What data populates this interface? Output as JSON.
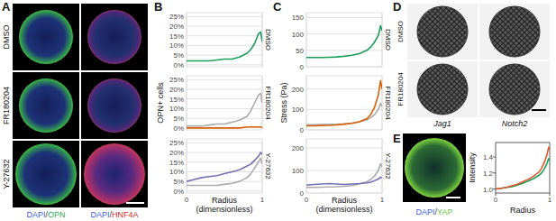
{
  "figure": {
    "A": {
      "letter": "A",
      "rows": [
        "DMSO",
        "FR180204",
        "Y-27632"
      ],
      "legends": [
        [
          {
            "text": "DAPI",
            "color": "#3b5bdb"
          },
          {
            "text": "/",
            "color": "#333333"
          },
          {
            "text": "OPN",
            "color": "#2fa84f"
          }
        ],
        [
          {
            "text": "DAPI",
            "color": "#3b5bdb"
          },
          {
            "text": "/",
            "color": "#333333"
          },
          {
            "text": "HNF4A",
            "color": "#d62828"
          }
        ]
      ]
    },
    "B": {
      "letter": "B"
    },
    "C": {
      "letter": "C"
    },
    "D": {
      "letter": "D",
      "rows": [
        "DMSO",
        "FR180204"
      ],
      "columns": [
        "Jag1",
        "Notch2"
      ]
    },
    "E": {
      "letter": "E",
      "legend": [
        {
          "text": "DAPI",
          "color": "#3b5bdb"
        },
        {
          "text": "/",
          "color": "#333333"
        },
        {
          "text": "YAP",
          "color": "#6cbf3a"
        }
      ]
    }
  },
  "chart_data": [
    {
      "type": "line",
      "title": "DMSO",
      "x": [
        0,
        0.1,
        0.2,
        0.3,
        0.4,
        0.5,
        0.6,
        0.7,
        0.8,
        0.85,
        0.9,
        0.95,
        0.98,
        1
      ],
      "series": [
        {
          "color": "#1b9e5a",
          "values": [
            2,
            2,
            2,
            2,
            2.5,
            3,
            3,
            4,
            6,
            8,
            11,
            16,
            17,
            12
          ]
        }
      ],
      "xlim": [
        0,
        1
      ],
      "xticks": [
        0,
        1
      ],
      "ylim": [
        -1,
        27
      ],
      "yticks": [
        {
          "value": 0,
          "label": "0%"
        },
        {
          "value": 5,
          "label": "5%"
        },
        {
          "value": 10,
          "label": "10%"
        },
        {
          "value": 15,
          "label": "15%"
        },
        {
          "value": 20,
          "label": "20%"
        },
        {
          "value": 25,
          "label": "25%"
        }
      ],
      "grid": true,
      "tick_labels": "y"
    },
    {
      "type": "line",
      "title": "FR180204",
      "y_label": "OPN+ cells",
      "x": [
        0,
        0.1,
        0.2,
        0.3,
        0.4,
        0.5,
        0.6,
        0.7,
        0.8,
        0.85,
        0.9,
        0.95,
        0.98,
        1
      ],
      "series": [
        {
          "color": "#aaaaaa",
          "values": [
            1,
            1,
            1,
            1.5,
            2,
            2,
            3,
            4,
            6,
            9,
            13,
            17,
            18,
            13
          ]
        },
        {
          "color": "#d95f02",
          "values": [
            0,
            0,
            0,
            0,
            0,
            0,
            0,
            0,
            0.5,
            0.5,
            0.5,
            0.5,
            0.5,
            0.3
          ]
        }
      ],
      "xlim": [
        0,
        1
      ],
      "xticks": [
        0,
        1
      ],
      "ylim": [
        -1,
        27
      ],
      "yticks": [
        {
          "value": 0,
          "label": "0%"
        },
        {
          "value": 5,
          "label": "5%"
        },
        {
          "value": 10,
          "label": "10%"
        },
        {
          "value": 15,
          "label": "15%"
        },
        {
          "value": 20,
          "label": "20%"
        },
        {
          "value": 25,
          "label": "25%"
        }
      ],
      "grid": true,
      "tick_labels": "y"
    },
    {
      "type": "line",
      "title": "Y-27632",
      "x_label": [
        "Radius",
        "(dimensionless)"
      ],
      "x": [
        0,
        0.1,
        0.2,
        0.3,
        0.4,
        0.5,
        0.6,
        0.7,
        0.8,
        0.85,
        0.9,
        0.95,
        0.98,
        1
      ],
      "series": [
        {
          "color": "#aaaaaa",
          "values": [
            3,
            3,
            3,
            3,
            3,
            3.5,
            4,
            5,
            7,
            9,
            12,
            15,
            17,
            14
          ]
        },
        {
          "color": "#7570b3",
          "values": [
            5,
            6,
            7,
            7.5,
            8,
            9,
            10,
            11,
            13,
            14,
            16,
            18,
            20,
            19
          ]
        }
      ],
      "xlim": [
        0,
        1
      ],
      "xticks": [
        0,
        1
      ],
      "ylim": [
        -1,
        27
      ],
      "yticks": [
        {
          "value": 0,
          "label": "0%"
        },
        {
          "value": 5,
          "label": "5%"
        },
        {
          "value": 10,
          "label": "10%"
        },
        {
          "value": 15,
          "label": "15%"
        },
        {
          "value": 20,
          "label": "20%"
        },
        {
          "value": 25,
          "label": "25%"
        }
      ],
      "grid": true
    },
    {
      "type": "line",
      "title": "DMSO",
      "x": [
        0,
        0.1,
        0.2,
        0.3,
        0.4,
        0.5,
        0.6,
        0.7,
        0.8,
        0.85,
        0.9,
        0.95,
        0.98,
        1
      ],
      "series": [
        {
          "color": "#1b9e5a",
          "values": [
            28,
            28,
            28,
            29,
            30,
            32,
            35,
            40,
            50,
            60,
            75,
            95,
            125,
            110
          ]
        }
      ],
      "xlim": [
        0,
        1
      ],
      "xticks": [
        0,
        1
      ],
      "ylim": [
        0,
        165
      ],
      "yticks": [
        0,
        50,
        100,
        150
      ],
      "grid": true,
      "tick_labels": "y"
    },
    {
      "type": "line",
      "title": "FR180204",
      "y_label": "Stress (Pa)",
      "x": [
        0,
        0.1,
        0.2,
        0.3,
        0.4,
        0.5,
        0.6,
        0.7,
        0.8,
        0.85,
        0.9,
        0.95,
        0.98,
        1
      ],
      "series": [
        {
          "color": "#aaaaaa",
          "values": [
            25,
            25,
            26,
            27,
            28,
            30,
            33,
            40,
            50,
            60,
            75,
            100,
            130,
            115
          ]
        },
        {
          "color": "#d95f02",
          "values": [
            20,
            20,
            21,
            22,
            24,
            28,
            32,
            40,
            55,
            75,
            110,
            170,
            240,
            200
          ]
        }
      ],
      "xlim": [
        0,
        1
      ],
      "xticks": [
        0,
        1
      ],
      "ylim": [
        0,
        265
      ],
      "yticks": [
        0,
        100,
        200
      ],
      "grid": true,
      "tick_labels": "y"
    },
    {
      "type": "line",
      "title": "Y-27632",
      "x_label": [
        "Radius",
        "(dimensionless)"
      ],
      "x": [
        0,
        0.1,
        0.2,
        0.3,
        0.4,
        0.5,
        0.6,
        0.7,
        0.8,
        0.85,
        0.9,
        0.95,
        0.98,
        1
      ],
      "series": [
        {
          "color": "#aaaaaa",
          "values": [
            25,
            25,
            26,
            27,
            28,
            30,
            33,
            40,
            50,
            60,
            75,
            100,
            130,
            115
          ]
        },
        {
          "color": "#7570b3",
          "values": [
            35,
            38,
            40,
            42,
            40,
            38,
            40,
            42,
            45,
            48,
            55,
            62,
            70,
            68
          ]
        }
      ],
      "xlim": [
        0,
        1
      ],
      "xticks": [
        0,
        1
      ],
      "ylim": [
        0,
        240
      ],
      "yticks": [
        0,
        100,
        200
      ],
      "grid": true
    },
    {
      "type": "line",
      "x_label": "Radius",
      "y_label": "Intensity",
      "x": [
        0,
        0.1,
        0.2,
        0.3,
        0.4,
        0.5,
        0.6,
        0.7,
        0.8,
        0.85,
        0.9,
        0.95,
        0.98,
        1
      ],
      "series": [
        {
          "color": "#1b9e5a",
          "values": [
            1.0,
            1.01,
            1.02,
            1.03,
            1.05,
            1.07,
            1.1,
            1.13,
            1.17,
            1.2,
            1.25,
            1.32,
            1.38,
            1.36
          ]
        },
        {
          "color": "#e8542a",
          "values": [
            1.0,
            1.01,
            1.02,
            1.04,
            1.06,
            1.09,
            1.12,
            1.16,
            1.21,
            1.26,
            1.33,
            1.43,
            1.52,
            1.49
          ]
        }
      ],
      "xlim": [
        0,
        1
      ],
      "xticks": [
        0,
        1
      ],
      "ylim": [
        0.95,
        1.58
      ],
      "yticks": [
        {
          "value": 1,
          "label": "1.0"
        },
        {
          "value": 1.2,
          "label": "1.2"
        },
        {
          "value": 1.4,
          "label": "1.4"
        }
      ],
      "grid": false
    }
  ]
}
